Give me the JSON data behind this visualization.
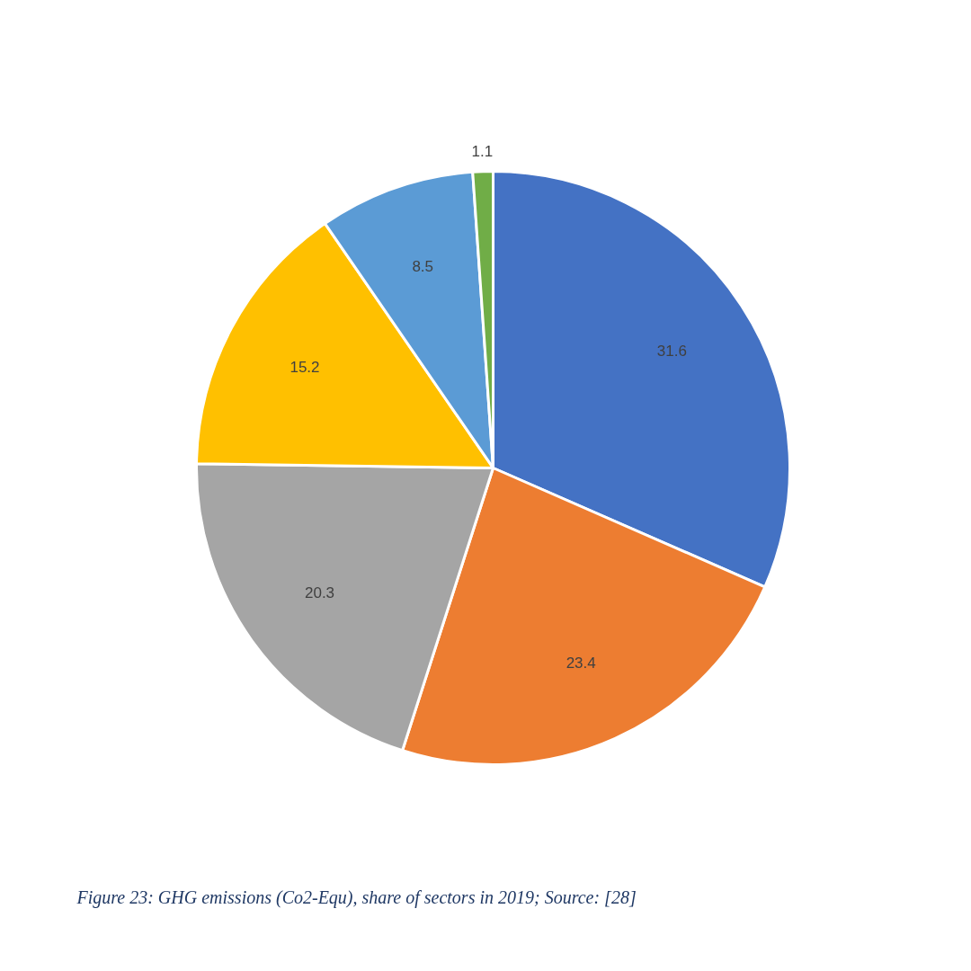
{
  "chart_data": {
    "type": "pie",
    "categories": [
      null,
      null,
      null,
      null,
      null,
      null
    ],
    "values": [
      31.6,
      23.4,
      20.3,
      15.2,
      8.5,
      1.1
    ],
    "colors": [
      "#4472c4",
      "#ed7d31",
      "#a5a5a5",
      "#ffc000",
      "#5b9bd5",
      "#70ad47"
    ],
    "data_labels": true,
    "annotations": [
      "Figure 23: GHG emissions (Co2-Equ), share of sectors in 2019; Source: [28]"
    ]
  }
}
